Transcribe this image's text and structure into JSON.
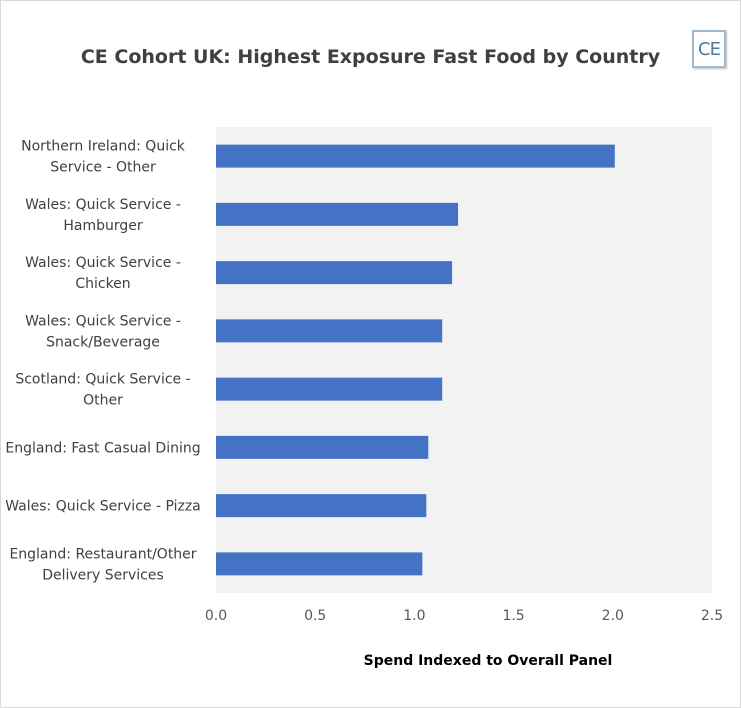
{
  "chart_data": {
    "type": "bar",
    "orientation": "horizontal",
    "title": "CE Cohort UK: Highest Exposure Fast Food by Country",
    "xlabel": "Spend Indexed to Overall Panel",
    "ylabel": "",
    "categories": [
      [
        "Northern Ireland: Quick",
        "Service - Other"
      ],
      [
        "Wales: Quick Service -",
        "Hamburger"
      ],
      [
        "Wales: Quick Service -",
        "Chicken"
      ],
      [
        "Wales: Quick Service -",
        "Snack/Beverage"
      ],
      [
        "Scotland: Quick Service -",
        "Other"
      ],
      [
        "England: Fast Casual Dining"
      ],
      [
        "Wales: Quick Service - Pizza"
      ],
      [
        "England: Restaurant/Other",
        "Delivery Services"
      ]
    ],
    "values": [
      2.01,
      1.22,
      1.19,
      1.14,
      1.14,
      1.07,
      1.06,
      1.04
    ],
    "xlim": [
      0,
      2.5
    ],
    "ticks": [
      "0.0",
      "0.5",
      "1.0",
      "1.5",
      "2.0",
      "2.5"
    ],
    "tick_values": [
      0,
      0.5,
      1.0,
      1.5,
      2.0,
      2.5
    ],
    "bar_color": "#4472c4",
    "plot_background": "#f2f2f2",
    "grid": false,
    "legend": "none"
  },
  "logo": {
    "text": "CE"
  }
}
